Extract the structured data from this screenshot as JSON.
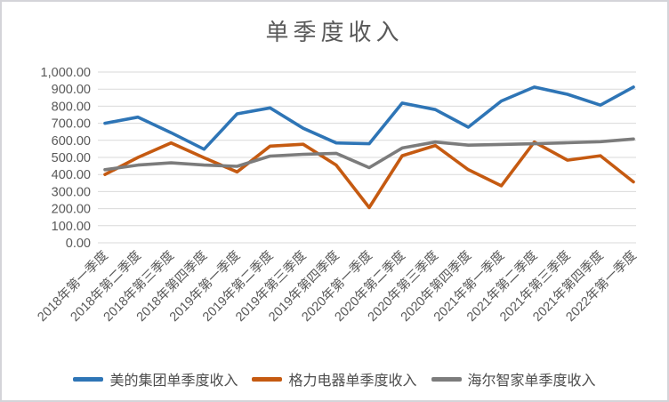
{
  "title": "单季度收入",
  "colors": {
    "midea": "#2E75B6",
    "gree": "#C55A11",
    "haier": "#7C7C7C",
    "grid": "#D9D9D9",
    "text": "#595959",
    "frame_border": "#D4D4D9",
    "background": "#FFFFFF"
  },
  "chart_data": {
    "type": "line",
    "title": "单季度收入",
    "xlabel": "",
    "ylabel": "",
    "ylim": [
      0,
      1000
    ],
    "y_tick_step": 100,
    "grid": true,
    "legend_position": "bottom",
    "x_tick_rotation_deg": 45,
    "y_ticks": [
      "0.00",
      "100.00",
      "200.00",
      "300.00",
      "400.00",
      "500.00",
      "600.00",
      "700.00",
      "800.00",
      "900.00",
      "1,000.00"
    ],
    "categories": [
      "2018年第一季度",
      "2018年第二季度",
      "2018年第三季度",
      "2018年第四季度",
      "2019年第一季度",
      "2019年第二季度",
      "2019年第三季度",
      "2019年第四季度",
      "2020年第一季度",
      "2020年第二季度",
      "2020年第三季度",
      "2020年第四季度",
      "2021年第一季度",
      "2021年第二季度",
      "2021年第三季度",
      "2021年第四季度",
      "2022年第一季度"
    ],
    "series": [
      {
        "name": "美的集团单季度收入",
        "key": "midea",
        "color_key": "midea",
        "values": [
          700,
          736,
          645,
          548,
          755,
          790,
          671,
          585,
          580,
          818,
          780,
          677,
          830,
          912,
          870,
          806,
          912
        ]
      },
      {
        "name": "格力电器单季度收入",
        "key": "gree",
        "color_key": "gree",
        "values": [
          400,
          500,
          585,
          498,
          415,
          566,
          577,
          455,
          206,
          510,
          570,
          428,
          334,
          590,
          484,
          510,
          357
        ]
      },
      {
        "name": "海尔智家单季度收入",
        "key": "haier",
        "color_key": "haier",
        "values": [
          428,
          455,
          468,
          455,
          448,
          508,
          518,
          524,
          440,
          555,
          590,
          572,
          576,
          580,
          586,
          592,
          608
        ]
      }
    ]
  }
}
